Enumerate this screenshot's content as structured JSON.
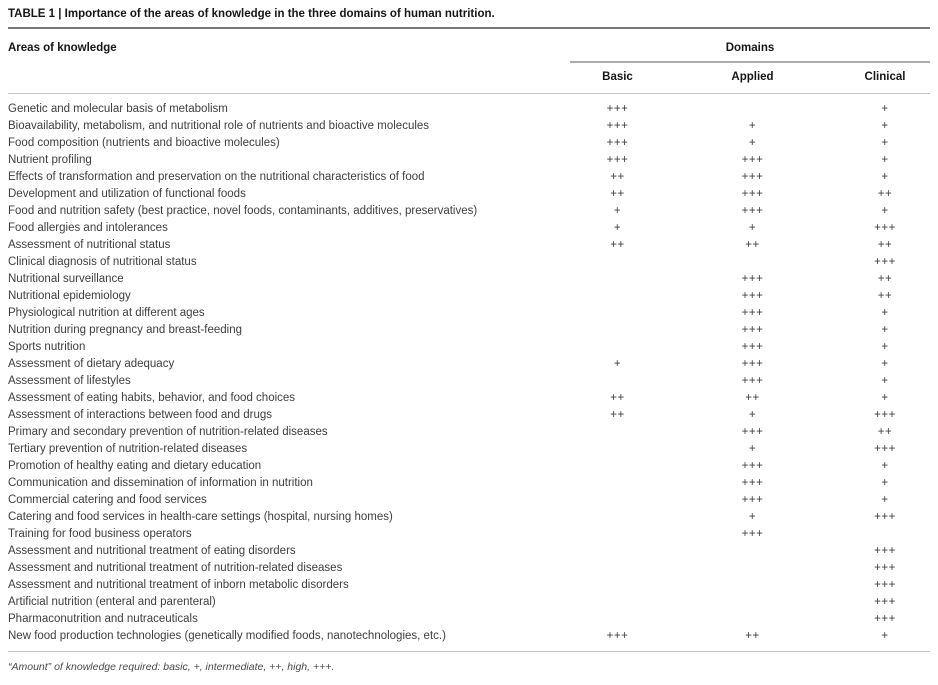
{
  "title": "TABLE 1 | Importance of the areas of knowledge in the three domains of human nutrition.",
  "table": {
    "area_header": "Areas of knowledge",
    "group_header": "Domains",
    "columns": [
      "Basic",
      "Applied",
      "Clinical"
    ],
    "rows": [
      {
        "area": "Genetic and molecular basis of metabolism",
        "basic": "+++",
        "applied": "",
        "clinical": "+"
      },
      {
        "area": "Bioavailability, metabolism, and nutritional role of nutrients and bioactive molecules",
        "basic": "+++",
        "applied": "+",
        "clinical": "+"
      },
      {
        "area": "Food composition (nutrients and bioactive molecules)",
        "basic": "+++",
        "applied": "+",
        "clinical": "+"
      },
      {
        "area": "Nutrient profiling",
        "basic": "+++",
        "applied": "+++",
        "clinical": "+"
      },
      {
        "area": "Effects of transformation and preservation on the nutritional characteristics of food",
        "basic": "++",
        "applied": "+++",
        "clinical": "+"
      },
      {
        "area": "Development and utilization of functional foods",
        "basic": "++",
        "applied": "+++",
        "clinical": "++"
      },
      {
        "area": "Food and nutrition safety (best practice, novel foods, contaminants, additives, preservatives)",
        "basic": "+",
        "applied": "+++",
        "clinical": "+"
      },
      {
        "area": "Food allergies and intolerances",
        "basic": "+",
        "applied": "+",
        "clinical": "+++"
      },
      {
        "area": "Assessment of nutritional status",
        "basic": "++",
        "applied": "++",
        "clinical": "++"
      },
      {
        "area": "Clinical diagnosis of nutritional status",
        "basic": "",
        "applied": "",
        "clinical": "+++"
      },
      {
        "area": "Nutritional surveillance",
        "basic": "",
        "applied": "+++",
        "clinical": "++"
      },
      {
        "area": "Nutritional epidemiology",
        "basic": "",
        "applied": "+++",
        "clinical": "++"
      },
      {
        "area": "Physiological nutrition at different ages",
        "basic": "",
        "applied": "+++",
        "clinical": "+"
      },
      {
        "area": "Nutrition during pregnancy and breast-feeding",
        "basic": "",
        "applied": "+++",
        "clinical": "+"
      },
      {
        "area": "Sports nutrition",
        "basic": "",
        "applied": "+++",
        "clinical": "+"
      },
      {
        "area": "Assessment of dietary adequacy",
        "basic": "+",
        "applied": "+++",
        "clinical": "+"
      },
      {
        "area": "Assessment of lifestyles",
        "basic": "",
        "applied": "+++",
        "clinical": "+"
      },
      {
        "area": "Assessment of eating habits, behavior, and food choices",
        "basic": "++",
        "applied": "++",
        "clinical": "+"
      },
      {
        "area": "Assessment of interactions between food and drugs",
        "basic": "++",
        "applied": "+",
        "clinical": "+++"
      },
      {
        "area": "Primary and secondary prevention of nutrition-related diseases",
        "basic": "",
        "applied": "+++",
        "clinical": "++"
      },
      {
        "area": "Tertiary prevention of nutrition-related diseases",
        "basic": "",
        "applied": "+",
        "clinical": "+++"
      },
      {
        "area": "Promotion of healthy eating and dietary education",
        "basic": "",
        "applied": "+++",
        "clinical": "+"
      },
      {
        "area": "Communication and dissemination of information in nutrition",
        "basic": "",
        "applied": "+++",
        "clinical": "+"
      },
      {
        "area": "Commercial catering and food services",
        "basic": "",
        "applied": "+++",
        "clinical": "+"
      },
      {
        "area": "Catering and food services in health-care settings (hospital, nursing homes)",
        "basic": "",
        "applied": "+",
        "clinical": "+++"
      },
      {
        "area": "Training for food business operators",
        "basic": "",
        "applied": "+++",
        "clinical": ""
      },
      {
        "area": "Assessment and nutritional treatment of eating disorders",
        "basic": "",
        "applied": "",
        "clinical": "+++"
      },
      {
        "area": "Assessment and nutritional treatment of nutrition-related diseases",
        "basic": "",
        "applied": "",
        "clinical": "+++"
      },
      {
        "area": "Assessment and nutritional treatment of inborn metabolic disorders",
        "basic": "",
        "applied": "",
        "clinical": "+++"
      },
      {
        "area": "Artificial nutrition (enteral and parenteral)",
        "basic": "",
        "applied": "",
        "clinical": "+++"
      },
      {
        "area": "Pharmaconutrition and nutraceuticals",
        "basic": "",
        "applied": "",
        "clinical": "+++"
      },
      {
        "area": "New food production technologies (genetically modified foods, nanotechnologies, etc.)",
        "basic": "+++",
        "applied": "++",
        "clinical": "+"
      }
    ]
  },
  "footnote": "“Amount” of knowledge required: basic, +, intermediate, ++, high, +++.",
  "colors": {
    "text": "#3e3e40",
    "heading": "#161616",
    "rule_dark": "#77787a",
    "rule_medium": "#ababad",
    "rule_light": "#c6c6c8",
    "background": "#ffffff"
  }
}
